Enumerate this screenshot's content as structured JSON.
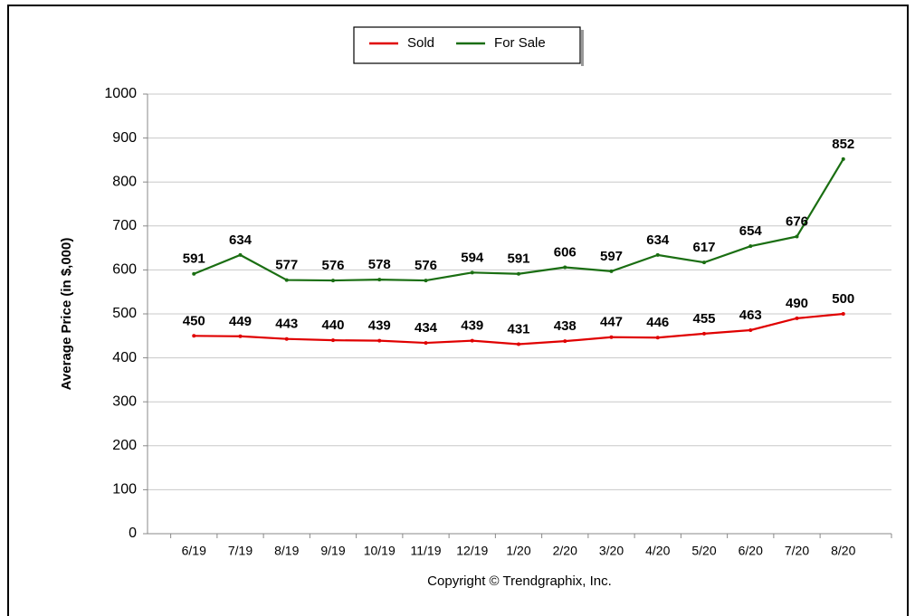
{
  "chart_data": {
    "type": "line",
    "y_label": "Average Price (in $,000)",
    "x_label": "Copyright © Trendgraphix, Inc.",
    "categories": [
      "6/19",
      "7/19",
      "8/19",
      "9/19",
      "10/19",
      "11/19",
      "12/19",
      "1/20",
      "2/20",
      "3/20",
      "4/20",
      "5/20",
      "6/20",
      "7/20",
      "8/20"
    ],
    "series": [
      {
        "name": "Sold",
        "color": "#e00000",
        "values": [
          450,
          449,
          443,
          440,
          439,
          434,
          439,
          431,
          438,
          447,
          446,
          455,
          463,
          490,
          500
        ]
      },
      {
        "name": "For Sale",
        "color": "#1a6e12",
        "values": [
          591,
          634,
          577,
          576,
          578,
          576,
          594,
          591,
          606,
          597,
          634,
          617,
          654,
          676,
          852
        ]
      }
    ],
    "ylim": [
      0,
      1000
    ],
    "yticks": [
      0,
      100,
      200,
      300,
      400,
      500,
      600,
      700,
      800,
      900,
      1000
    ],
    "grid": true,
    "legend": "top"
  }
}
